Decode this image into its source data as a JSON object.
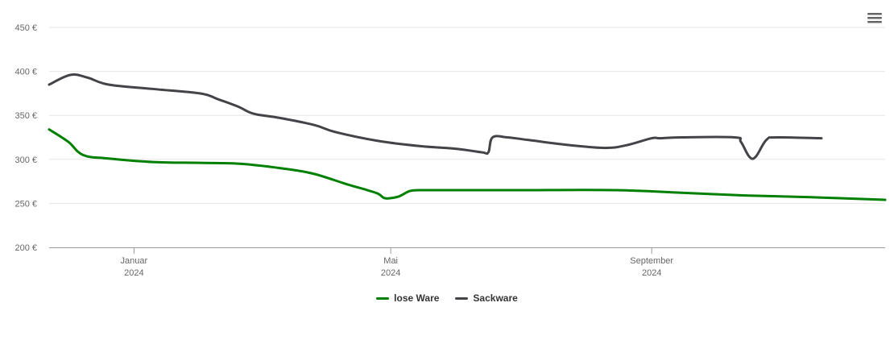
{
  "chart_data": {
    "type": "line",
    "y_ticks": [
      "200 €",
      "250 €",
      "300 €",
      "350 €",
      "400 €",
      "450 €"
    ],
    "ylim": [
      200,
      450
    ],
    "x_ticks": [
      {
        "month": "Januar",
        "year": "2024",
        "date": "2024-01-01"
      },
      {
        "month": "Mai",
        "year": "2024",
        "date": "2024-05-01"
      },
      {
        "month": "September",
        "year": "2024",
        "date": "2024-09-01"
      }
    ],
    "xlim": [
      "2023-11-22",
      "2024-12-20"
    ],
    "grid": true,
    "legend_position": "bottom-center",
    "series": [
      {
        "name": "lose Ware",
        "color": "#008000",
        "points": [
          [
            "2023-11-22",
            334
          ],
          [
            "2023-12-01",
            320
          ],
          [
            "2023-12-08",
            305
          ],
          [
            "2023-12-20",
            301
          ],
          [
            "2024-01-10",
            297
          ],
          [
            "2024-02-01",
            296
          ],
          [
            "2024-02-20",
            295
          ],
          [
            "2024-03-10",
            290
          ],
          [
            "2024-03-25",
            284
          ],
          [
            "2024-04-10",
            272
          ],
          [
            "2024-04-20",
            265
          ],
          [
            "2024-04-25",
            261
          ],
          [
            "2024-04-28",
            256
          ],
          [
            "2024-05-01",
            256
          ],
          [
            "2024-05-05",
            258
          ],
          [
            "2024-05-10",
            264
          ],
          [
            "2024-05-15",
            265
          ],
          [
            "2024-06-01",
            265
          ],
          [
            "2024-07-01",
            265
          ],
          [
            "2024-08-15",
            265
          ],
          [
            "2024-09-15",
            262
          ],
          [
            "2024-10-15",
            259
          ],
          [
            "2024-11-15",
            257
          ],
          [
            "2024-12-20",
            254
          ]
        ]
      },
      {
        "name": "Sackware",
        "color": "#434348",
        "points": [
          [
            "2023-11-22",
            385
          ],
          [
            "2023-12-02",
            396
          ],
          [
            "2023-12-10",
            393
          ],
          [
            "2023-12-20",
            385
          ],
          [
            "2024-01-10",
            380
          ],
          [
            "2024-02-01",
            375
          ],
          [
            "2024-02-10",
            368
          ],
          [
            "2024-02-19",
            360
          ],
          [
            "2024-02-24",
            354
          ],
          [
            "2024-02-28",
            351
          ],
          [
            "2024-03-10",
            347
          ],
          [
            "2024-03-26",
            339
          ],
          [
            "2024-04-05",
            331
          ],
          [
            "2024-04-25",
            321
          ],
          [
            "2024-05-15",
            315
          ],
          [
            "2024-06-01",
            312
          ],
          [
            "2024-06-13",
            308
          ],
          [
            "2024-06-16",
            308
          ],
          [
            "2024-06-18",
            325
          ],
          [
            "2024-06-25",
            325
          ],
          [
            "2024-07-05",
            322
          ],
          [
            "2024-07-25",
            316
          ],
          [
            "2024-08-10",
            313
          ],
          [
            "2024-08-20",
            316
          ],
          [
            "2024-09-01",
            324
          ],
          [
            "2024-09-15",
            325
          ],
          [
            "2024-10-10",
            325
          ],
          [
            "2024-10-13",
            320
          ],
          [
            "2024-10-17",
            303
          ],
          [
            "2024-10-20",
            303
          ],
          [
            "2024-10-25",
            322
          ],
          [
            "2024-10-30",
            325
          ],
          [
            "2024-11-20",
            324
          ],
          [
            "2024-09-05",
            324
          ]
        ]
      }
    ]
  },
  "toolbar": {
    "menu_icon": "hamburger-menu-icon"
  }
}
